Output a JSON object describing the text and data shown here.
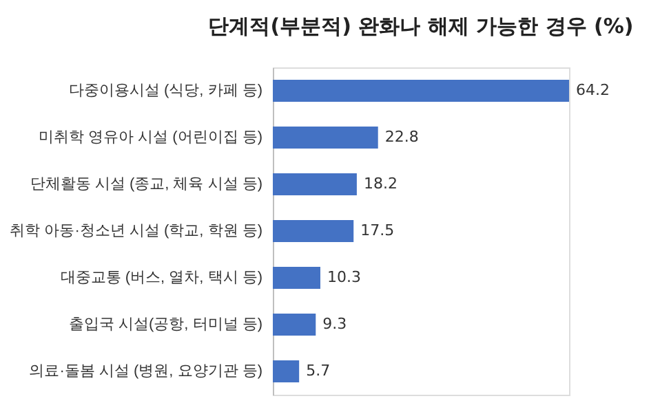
{
  "chart_data": {
    "type": "bar",
    "orientation": "horizontal",
    "title": "단계적(부분적) 완화나 해제 가능한 경우 (%)",
    "categories": [
      "다중이용시설 (식당, 카페 등)",
      "미취학 영유아 시설 (어린이집 등)",
      "단체활동 시설 (종교, 체육 시설 등)",
      "취학 아동·청소년 시설 (학교, 학원 등)",
      "대중교통 (버스, 열차, 택시 등)",
      "출입국 시설(공항, 터미널 등)",
      "의료·돌봄 시설 (병원, 요양기관 등)"
    ],
    "values": [
      64.2,
      22.8,
      18.2,
      17.5,
      10.3,
      9.3,
      5.7
    ],
    "color": "#4472c4",
    "data_labels": true
  }
}
